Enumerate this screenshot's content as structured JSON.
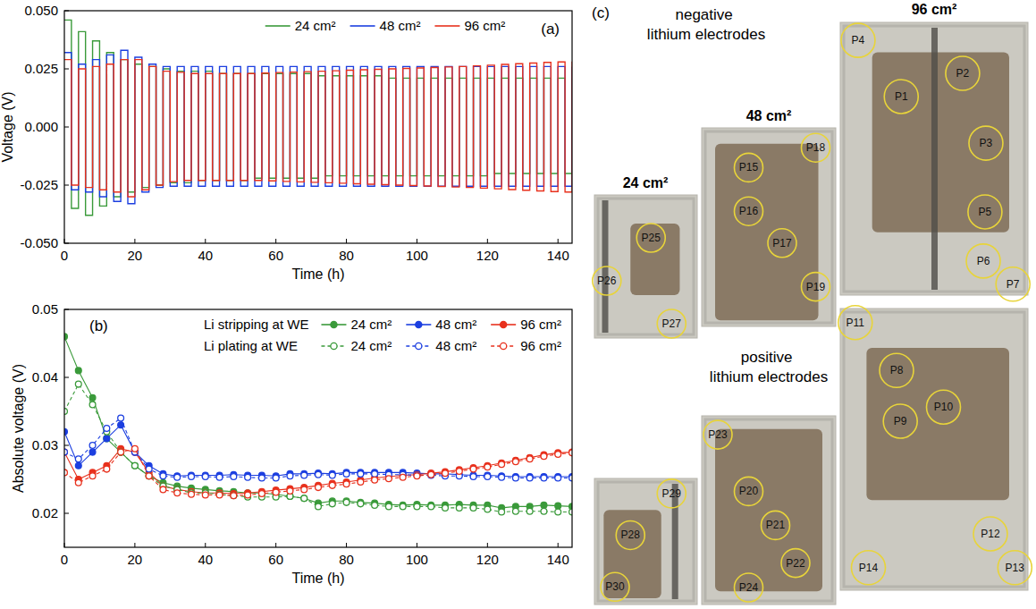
{
  "chart_data": [
    {
      "type": "line",
      "annotation": "(a)",
      "xlabel": "Time (h)",
      "ylabel": "Voltage (V)",
      "xlim": [
        0,
        144
      ],
      "ylim": [
        -0.05,
        0.05
      ],
      "xticks": [
        0,
        20,
        40,
        60,
        80,
        100,
        120,
        140
      ],
      "yticks": [
        {
          "value": -0.05,
          "label": "-0.050"
        },
        {
          "value": -0.025,
          "label": "-0.025"
        },
        {
          "value": 0,
          "label": "0.000"
        },
        {
          "value": 0.025,
          "label": "0.025"
        },
        {
          "value": 0.05,
          "label": "0.050"
        }
      ],
      "grid": false,
      "legend": "top",
      "x": [
        0,
        2,
        4,
        6,
        8,
        10,
        12,
        14,
        16,
        18,
        20,
        22,
        24,
        26,
        28,
        30,
        32,
        34,
        36,
        38,
        40,
        42,
        44,
        46,
        48,
        50,
        52,
        54,
        56,
        58,
        60,
        62,
        64,
        66,
        68,
        70,
        72,
        74,
        76,
        78,
        80,
        82,
        84,
        86,
        88,
        90,
        92,
        94,
        96,
        98,
        100,
        102,
        104,
        106,
        108,
        110,
        112,
        114,
        116,
        118,
        120,
        122,
        124,
        126,
        128,
        130,
        132,
        134,
        136,
        138,
        140,
        142,
        144
      ],
      "series": [
        {
          "name": "24 cm²",
          "color": "#3a9a3a",
          "line_style": "step",
          "values": [
            0.046,
            -0.035,
            0.041,
            -0.038,
            0.037,
            -0.034,
            0.032,
            -0.03,
            0.029,
            -0.028,
            0.027,
            -0.026,
            0.026,
            -0.025,
            0.025,
            -0.024,
            0.024,
            -0.024,
            0.024,
            -0.023,
            0.024,
            -0.023,
            0.023,
            -0.023,
            0.023,
            -0.023,
            0.023,
            -0.022,
            0.023,
            -0.022,
            0.023,
            -0.022,
            0.023,
            -0.022,
            0.023,
            -0.022,
            0.022,
            -0.021,
            0.022,
            -0.021,
            0.022,
            -0.021,
            0.022,
            -0.021,
            0.022,
            -0.021,
            0.021,
            -0.021,
            0.021,
            -0.021,
            0.021,
            -0.021,
            0.021,
            -0.021,
            0.021,
            -0.021,
            0.021,
            -0.021,
            0.021,
            -0.021,
            0.021,
            -0.02,
            0.021,
            -0.02,
            0.021,
            -0.02,
            0.021,
            -0.02,
            0.021,
            -0.02,
            0.021,
            -0.02,
            0.021
          ]
        },
        {
          "name": "48 cm²",
          "color": "#1c3fe0",
          "line_style": "step",
          "values": [
            0.032,
            -0.027,
            0.027,
            -0.028,
            0.029,
            -0.03,
            0.031,
            -0.032,
            0.033,
            -0.033,
            0.03,
            -0.028,
            0.027,
            -0.026,
            0.026,
            -0.0255,
            0.026,
            -0.0255,
            0.026,
            -0.0255,
            0.026,
            -0.0255,
            0.026,
            -0.0255,
            0.026,
            -0.0255,
            0.026,
            -0.0255,
            0.026,
            -0.0255,
            0.026,
            -0.0255,
            0.026,
            -0.0255,
            0.026,
            -0.0255,
            0.026,
            -0.0255,
            0.026,
            -0.0255,
            0.026,
            -0.0255,
            0.026,
            -0.0255,
            0.026,
            -0.0255,
            0.026,
            -0.0255,
            0.026,
            -0.0255,
            0.026,
            -0.0255,
            0.026,
            -0.0255,
            0.026,
            -0.0255,
            0.026,
            -0.0255,
            0.026,
            -0.0255,
            0.026,
            -0.0255,
            0.026,
            -0.0255,
            0.026,
            -0.0255,
            0.026,
            -0.0255,
            0.026,
            -0.0255,
            0.026,
            -0.0255,
            0.026
          ]
        },
        {
          "name": "96 cm²",
          "color": "#e8311d",
          "line_style": "step",
          "values": [
            0.029,
            -0.025,
            0.025,
            -0.026,
            0.026,
            -0.027,
            0.027,
            -0.028,
            0.029,
            -0.03,
            0.029,
            -0.027,
            0.026,
            -0.025,
            0.024,
            -0.0235,
            0.0235,
            -0.023,
            0.023,
            -0.023,
            0.023,
            -0.023,
            0.023,
            -0.023,
            0.023,
            -0.023,
            0.023,
            -0.023,
            0.0232,
            -0.0232,
            0.0234,
            -0.0234,
            0.0236,
            -0.0236,
            0.0238,
            -0.0238,
            0.024,
            -0.024,
            0.0242,
            -0.0242,
            0.0244,
            -0.0244,
            0.0246,
            -0.0246,
            0.0248,
            -0.0248,
            0.025,
            -0.025,
            0.0252,
            -0.0252,
            0.0254,
            -0.0254,
            0.0256,
            -0.0256,
            0.0258,
            -0.0258,
            0.026,
            -0.026,
            0.0263,
            -0.0263,
            0.0266,
            -0.0266,
            0.0269,
            -0.0269,
            0.0272,
            -0.0272,
            0.0275,
            -0.0275,
            0.0278,
            -0.0278,
            0.028,
            -0.028,
            0.0282
          ]
        }
      ]
    },
    {
      "type": "line",
      "annotation": "(b)",
      "xlabel": "Time (h)",
      "ylabel": "Absolute voltage (V)",
      "xlim": [
        0,
        144
      ],
      "ylim": [
        0.015,
        0.05
      ],
      "xticks": [
        0,
        20,
        40,
        60,
        80,
        100,
        120,
        140
      ],
      "yticks": [
        0.02,
        0.03,
        0.04,
        0.05
      ],
      "grid": false,
      "legend": "top-right",
      "x": [
        0,
        4,
        8,
        12,
        16,
        20,
        24,
        28,
        32,
        36,
        40,
        44,
        48,
        52,
        56,
        60,
        64,
        68,
        72,
        76,
        80,
        84,
        88,
        92,
        96,
        100,
        104,
        108,
        112,
        116,
        120,
        124,
        128,
        132,
        136,
        140,
        144
      ],
      "series": [
        {
          "name": "24 cm²",
          "group": "Li stripping at WE",
          "color": "#3a9a3a",
          "marker": "circle",
          "line_style": "solid",
          "values": [
            0.046,
            0.041,
            0.037,
            0.031,
            0.029,
            0.027,
            0.0255,
            0.0245,
            0.024,
            0.0237,
            0.0235,
            0.0233,
            0.0232,
            0.023,
            0.023,
            0.0228,
            0.0225,
            0.0222,
            0.0215,
            0.0218,
            0.0218,
            0.0216,
            0.0215,
            0.0213,
            0.0212,
            0.0213,
            0.0212,
            0.0212,
            0.0213,
            0.0212,
            0.0212,
            0.0208,
            0.021,
            0.021,
            0.0212,
            0.0211,
            0.021
          ]
        },
        {
          "name": "48 cm²",
          "group": "Li stripping at WE",
          "color": "#1c3fe0",
          "marker": "circle",
          "line_style": "solid",
          "values": [
            0.032,
            0.027,
            0.029,
            0.031,
            0.033,
            0.029,
            0.027,
            0.0258,
            0.0255,
            0.0256,
            0.0256,
            0.0256,
            0.0257,
            0.0256,
            0.0256,
            0.0255,
            0.0258,
            0.0258,
            0.0259,
            0.0258,
            0.026,
            0.026,
            0.026,
            0.026,
            0.026,
            0.0259,
            0.0258,
            0.0258,
            0.0257,
            0.0256,
            0.0256,
            0.0255,
            0.0254,
            0.0254,
            0.0254,
            0.0254,
            0.0254
          ]
        },
        {
          "name": "96 cm²",
          "group": "Li stripping at WE",
          "color": "#e8311d",
          "marker": "circle",
          "line_style": "solid",
          "values": [
            0.029,
            0.025,
            0.026,
            0.027,
            0.0295,
            0.029,
            0.026,
            0.024,
            0.0235,
            0.0232,
            0.023,
            0.023,
            0.0229,
            0.023,
            0.0232,
            0.0234,
            0.0236,
            0.0238,
            0.0241,
            0.0244,
            0.0246,
            0.0249,
            0.0252,
            0.0254,
            0.0256,
            0.0257,
            0.0259,
            0.0261,
            0.0264,
            0.0267,
            0.027,
            0.0274,
            0.0278,
            0.0282,
            0.0286,
            0.0289,
            0.029
          ]
        },
        {
          "name": "24 cm²",
          "group": "Li plating at WE",
          "color": "#3a9a3a",
          "marker": "open-circle",
          "line_style": "dashed",
          "values": [
            0.035,
            0.039,
            0.036,
            0.032,
            0.029,
            0.027,
            0.0255,
            0.024,
            0.0235,
            0.023,
            0.023,
            0.0228,
            0.0226,
            0.0224,
            0.0224,
            0.0224,
            0.0225,
            0.0222,
            0.021,
            0.0214,
            0.0216,
            0.0214,
            0.0212,
            0.021,
            0.021,
            0.021,
            0.021,
            0.0208,
            0.0208,
            0.0208,
            0.0206,
            0.0202,
            0.0203,
            0.0203,
            0.0203,
            0.0202,
            0.0202
          ]
        },
        {
          "name": "48 cm²",
          "group": "Li plating at WE",
          "color": "#1c3fe0",
          "marker": "open-circle",
          "line_style": "dashed",
          "values": [
            0.029,
            0.028,
            0.03,
            0.0325,
            0.034,
            0.029,
            0.0265,
            0.0255,
            0.0253,
            0.0254,
            0.0254,
            0.0253,
            0.0254,
            0.0253,
            0.0252,
            0.0252,
            0.0255,
            0.0256,
            0.0257,
            0.0256,
            0.0258,
            0.0258,
            0.0258,
            0.0257,
            0.0257,
            0.0256,
            0.0256,
            0.0255,
            0.0255,
            0.0254,
            0.0254,
            0.0253,
            0.0252,
            0.0252,
            0.0252,
            0.0252,
            0.0252
          ]
        },
        {
          "name": "96 cm²",
          "group": "Li plating at WE",
          "color": "#e8311d",
          "marker": "open-circle",
          "line_style": "dashed",
          "values": [
            0.026,
            0.0245,
            0.0255,
            0.0265,
            0.029,
            0.0295,
            0.0255,
            0.0235,
            0.023,
            0.0228,
            0.0227,
            0.0227,
            0.0226,
            0.0227,
            0.0229,
            0.0231,
            0.0233,
            0.0235,
            0.0238,
            0.0241,
            0.0243,
            0.0246,
            0.0249,
            0.0251,
            0.0253,
            0.0255,
            0.0257,
            0.0259,
            0.0262,
            0.0265,
            0.0268,
            0.0272,
            0.0276,
            0.028,
            0.0284,
            0.0287,
            0.0289
          ]
        }
      ]
    }
  ],
  "panel_c": {
    "label": "(c)",
    "sizes": [
      "24 cm²",
      "48 cm²",
      "96 cm²"
    ],
    "rows": [
      {
        "title": "negative lithium electrodes",
        "electrodes": [
          {
            "points": [
              "P25",
              "P26",
              "P27"
            ]
          },
          {
            "points": [
              "P15",
              "P16",
              "P17",
              "P18",
              "P19"
            ]
          },
          {
            "points": [
              "P1",
              "P2",
              "P3",
              "P4",
              "P5",
              "P6",
              "P7"
            ]
          }
        ]
      },
      {
        "title": "positive lithium electrodes",
        "electrodes": [
          {
            "points": [
              "P28",
              "P29",
              "P30"
            ]
          },
          {
            "points": [
              "P20",
              "P21",
              "P22",
              "P23",
              "P24"
            ]
          },
          {
            "points": [
              "P8",
              "P9",
              "P10",
              "P11",
              "P12",
              "P13",
              "P14"
            ]
          }
        ]
      }
    ]
  }
}
